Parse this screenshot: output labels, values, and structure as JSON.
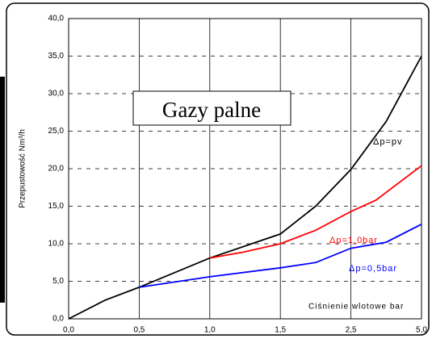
{
  "chart_data": {
    "type": "line",
    "title": "Gazy palne",
    "ylabel": "Przepustowość Nm³/h",
    "xlabel": "Ciśnienie wlotowe bar",
    "xlim": [
      0,
      5
    ],
    "xticks": [
      {
        "value": 0,
        "label": "0,0"
      },
      {
        "value": 0.5,
        "label": "0,5"
      },
      {
        "value": 1,
        "label": "1,0"
      },
      {
        "value": 1.5,
        "label": "1,5"
      },
      {
        "value": 2.5,
        "label": "2,5"
      },
      {
        "value": 5,
        "label": "5,0"
      }
    ],
    "ylim": [
      0,
      40
    ],
    "yticks": [
      {
        "value": 0,
        "label": "0,0"
      },
      {
        "value": 5,
        "label": "5,0"
      },
      {
        "value": 10,
        "label": "10,0"
      },
      {
        "value": 15,
        "label": "15,0"
      },
      {
        "value": 20,
        "label": "20,0"
      },
      {
        "value": 25,
        "label": "25,0"
      },
      {
        "value": 30,
        "label": "30,0"
      },
      {
        "value": 35,
        "label": "35,0"
      },
      {
        "value": 40,
        "label": "40,0"
      }
    ],
    "grid": true,
    "series": [
      {
        "name": "Δp=pv",
        "color": "#000000",
        "x": [
          0,
          0.26,
          0.5,
          1,
          1.5,
          2,
          2.5,
          3.75,
          5
        ],
        "values": [
          0,
          2.5,
          4.2,
          8.1,
          11.3,
          15,
          19.9,
          26.3,
          35
        ]
      },
      {
        "name": "Δp=1,0bar",
        "color": "#ff0000",
        "x": [
          1,
          1.24,
          1.5,
          2,
          2.5,
          3.38,
          5
        ],
        "values": [
          8.1,
          8.9,
          10,
          11.8,
          14.3,
          15.8,
          20.4
        ]
      },
      {
        "name": "Δp=0,5bar",
        "color": "#0000ff",
        "x": [
          0.5,
          1,
          1.5,
          2,
          2.5,
          3.75,
          5
        ],
        "values": [
          4.2,
          5.6,
          6.8,
          7.5,
          9.4,
          10.2,
          12.6
        ]
      }
    ]
  }
}
